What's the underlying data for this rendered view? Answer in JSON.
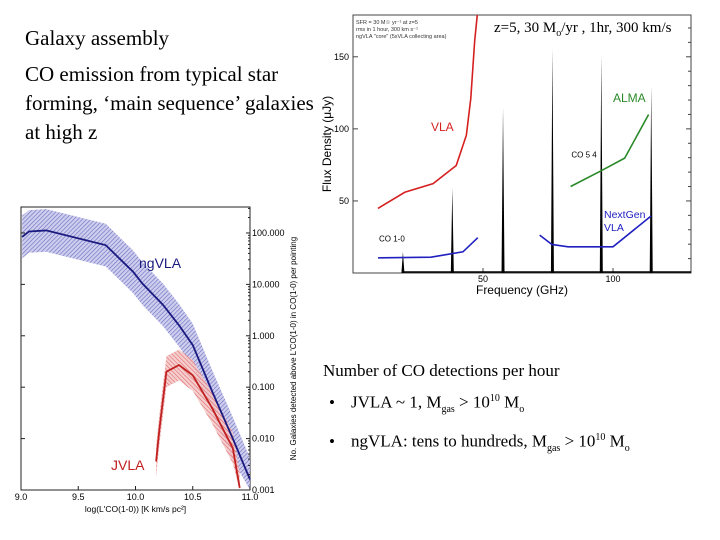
{
  "slide": {
    "title": "Galaxy assembly",
    "subtitle": "CO emission from typical star forming, ‘main sequence’ galaxies at high z",
    "annotation": {
      "pre": "z=5,  30 M",
      "sub": "o",
      "post": "/yr , 1hr, 300 km/s"
    },
    "bullets_heading": "Number of CO detections per hour",
    "bullets": [
      {
        "a": "JVLA ~ 1,  M",
        "sub1": "gas",
        "b": " > 10",
        "sup": "10",
        "c": " M",
        "sub2": "o"
      },
      {
        "a": "ngVLA: tens to hundreds, M",
        "sub1": "gas",
        "b": " > 10",
        "sup": "10",
        "c": " M",
        "sub2": "o"
      }
    ]
  },
  "chart_data": [
    {
      "type": "line",
      "xlabel": "Frequency (GHz)",
      "ylabel": "Flux Density (μJy)",
      "xlim": [
        0,
        130
      ],
      "ylim": [
        0,
        179
      ],
      "xticks": [
        50,
        100
      ],
      "yticks": [
        50,
        100,
        150
      ],
      "legend_note": [
        "SFR = 30 M☉ yr⁻¹ at z=5",
        "rms in 1 hour, 300 km s⁻¹",
        "ngVLA \"core\" (5xVLA collecting area)"
      ],
      "series": [
        {
          "name": "VLA",
          "color": "#d62020",
          "x": [
            9.6,
            19.9,
            30.8,
            39.7,
            43.6,
            45.3,
            46.8,
            47.8
          ],
          "y": [
            44.8,
            56,
            62,
            74.6,
            95.6,
            121,
            161,
            180
          ]
        },
        {
          "name": "NextGen VLA",
          "color": "#2020c0",
          "x": [
            9.6,
            30,
            42.3,
            48
          ],
          "y": [
            10.5,
            11,
            14.7,
            24.5
          ]
        },
        {
          "name": "NextGen VLA",
          "color": "#2020c0",
          "x": [
            71.8,
            76.5,
            82.7,
            100,
            114.7
          ],
          "y": [
            26.3,
            19.8,
            18.2,
            18.2,
            39.6
          ]
        },
        {
          "name": "ALMA",
          "color": "#2a8a2a",
          "x": [
            83.7,
            95.5,
            104.5,
            113.7
          ],
          "y": [
            60,
            71,
            79.7,
            110
          ]
        }
      ],
      "lines": {
        "color": "#000000",
        "x": [
          19.2,
          38.2,
          57.7,
          76.7,
          95.5,
          114.7
        ],
        "y": [
          14.7,
          59,
          114.7,
          155.5,
          151,
          130
        ]
      },
      "annotations": [
        {
          "text": "CO 1-0",
          "x": 10,
          "y": 22
        },
        {
          "text": "CO 5 4",
          "x": 84,
          "y": 80
        }
      ]
    },
    {
      "type": "area",
      "xlabel": "log(L'CO(1-0)) [K km/s pc²]",
      "ylabel": "No. Galaxies detected above L'CO(1-0) in CO(1-0) per pointing",
      "xlim": [
        9.0,
        11.0
      ],
      "ylim": [
        0.001,
        320
      ],
      "yscale": "log",
      "xticks": [
        "9.0",
        "9.5",
        "10.0",
        "10.5",
        "11.0"
      ],
      "yticks": [
        "100.000",
        "10.000",
        "1.000",
        "0.100",
        "0.010",
        "0.001"
      ],
      "series": [
        {
          "name": "ngVLA",
          "color": "#1a1a80",
          "band_color": "#6e6ec8",
          "band_factor": 2.6,
          "x": [
            9.01,
            9.07,
            9.22,
            9.74,
            9.98,
            10.06,
            10.24,
            10.38,
            10.5,
            10.67,
            10.85,
            11.0
          ],
          "y": [
            84,
            107,
            112,
            58,
            17.5,
            10.4,
            4,
            1.6,
            0.66,
            0.082,
            0.01,
            0.0016
          ]
        },
        {
          "name": "JVLA",
          "color": "#c02020",
          "band_color": "#e66a6a",
          "band_factor": 2.0,
          "x": [
            10.18,
            10.21,
            10.27,
            10.38,
            10.5,
            10.67,
            10.85,
            10.91
          ],
          "y": [
            0.0036,
            0.016,
            0.2,
            0.27,
            0.17,
            0.039,
            0.0065,
            0.0011
          ]
        }
      ]
    }
  ]
}
